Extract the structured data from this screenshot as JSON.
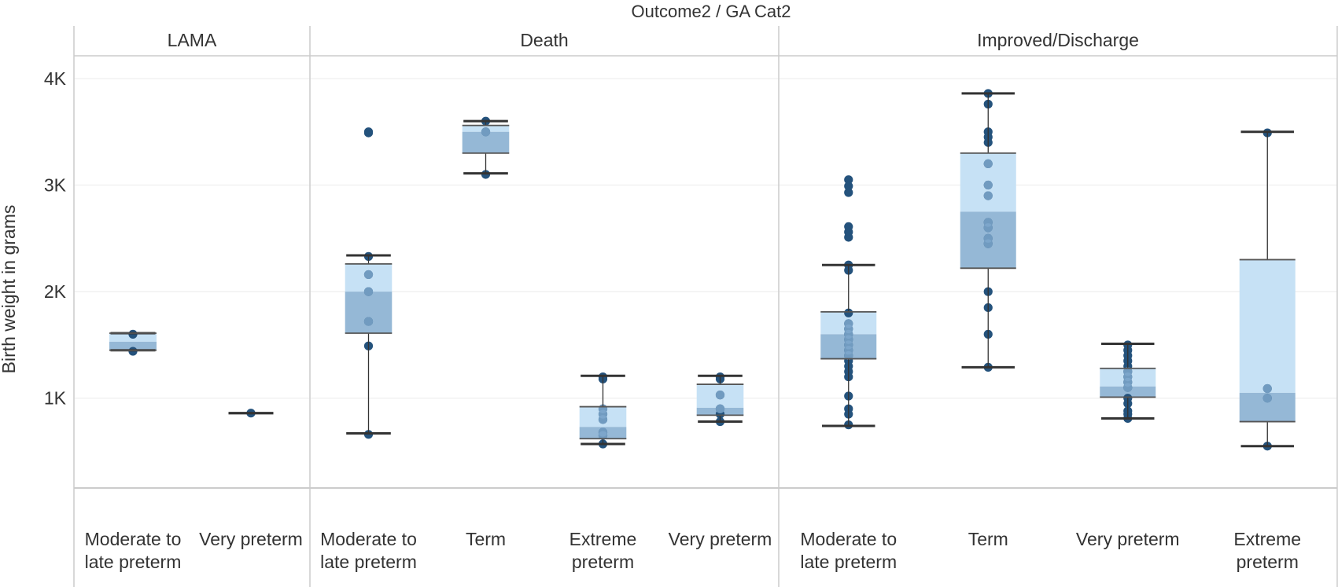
{
  "chart_data": {
    "type": "boxplot",
    "title": "Outcome2  /  GA Cat2",
    "ylabel": "Birth weight in grams",
    "ylim": [
      0,
      4300
    ],
    "yticks": [
      1000,
      2000,
      3000,
      4000
    ],
    "ytick_labels": [
      "1K",
      "2K",
      "3K",
      "4K"
    ],
    "grid": true,
    "colors": {
      "box_upper": "#c6e1f5",
      "box_lower": "#95b8d6",
      "point": "#24527c",
      "point_inner": "#7fa8cc",
      "whisker": "#333333",
      "divider": "#cccccc",
      "gridline": "#eeeeee"
    },
    "panels": [
      {
        "name": "LAMA",
        "groups": [
          {
            "label": [
              "Moderate to",
              "late preterm"
            ],
            "box": {
              "min": 1450,
              "q1": 1450,
              "median": 1530,
              "q3": 1610,
              "max": 1610
            },
            "points": [
              1440,
              1600
            ]
          },
          {
            "label": [
              "Very preterm"
            ],
            "box": {
              "min": 860,
              "q1": 860,
              "median": 860,
              "q3": 860,
              "max": 860
            },
            "points": [
              860
            ]
          }
        ]
      },
      {
        "name": "Death",
        "groups": [
          {
            "label": [
              "Moderate to",
              "late preterm"
            ],
            "box": {
              "min": 670,
              "q1": 1610,
              "median": 2000,
              "q3": 2260,
              "max": 2340
            },
            "points": [
              3490,
              3500,
              2330,
              2160,
              2000,
              1720,
              1490,
              660
            ]
          },
          {
            "label": [
              "Term"
            ],
            "box": {
              "min": 3110,
              "q1": 3300,
              "median": 3500,
              "q3": 3560,
              "max": 3600
            },
            "points": [
              3600,
              3500,
              3100
            ]
          },
          {
            "label": [
              "Extreme",
              "preterm"
            ],
            "box": {
              "min": 570,
              "q1": 620,
              "median": 730,
              "q3": 920,
              "max": 1210
            },
            "points": [
              1200,
              1180,
              900,
              850,
              800,
              680,
              650,
              570
            ]
          },
          {
            "label": [
              "Very preterm"
            ],
            "box": {
              "min": 780,
              "q1": 840,
              "median": 910,
              "q3": 1130,
              "max": 1210
            },
            "points": [
              1200,
              1180,
              1030,
              900,
              850,
              780
            ]
          }
        ]
      },
      {
        "name": "Improved/Discharge",
        "groups": [
          {
            "label": [
              "Moderate to",
              "late preterm"
            ],
            "box": {
              "min": 740,
              "q1": 1370,
              "median": 1600,
              "q3": 1810,
              "max": 2250
            },
            "points": [
              3050,
              2990,
              2930,
              2610,
              2560,
              2510,
              2250,
              2200,
              1800,
              1700,
              1650,
              1600,
              1550,
              1500,
              1450,
              1400,
              1350,
              1300,
              1250,
              1200,
              1020,
              900,
              850,
              750
            ]
          },
          {
            "label": [
              "Term"
            ],
            "box": {
              "min": 1290,
              "q1": 2220,
              "median": 2750,
              "q3": 3300,
              "max": 3860
            },
            "points": [
              3860,
              3760,
              3500,
              3450,
              3400,
              3200,
              3000,
              2900,
              2650,
              2600,
              2500,
              2450,
              2000,
              1850,
              1600,
              1290
            ]
          },
          {
            "label": [
              "Very preterm"
            ],
            "box": {
              "min": 810,
              "q1": 1010,
              "median": 1110,
              "q3": 1280,
              "max": 1510
            },
            "points": [
              1500,
              1450,
              1400,
              1350,
              1300,
              1250,
              1200,
              1150,
              1100,
              1000,
              950,
              880,
              850,
              810
            ]
          },
          {
            "label": [
              "Extreme",
              "preterm"
            ],
            "box": {
              "min": 550,
              "q1": 780,
              "median": 1050,
              "q3": 2300,
              "max": 3500
            },
            "points": [
              3490,
              1090,
              1000,
              550
            ]
          }
        ]
      }
    ]
  }
}
